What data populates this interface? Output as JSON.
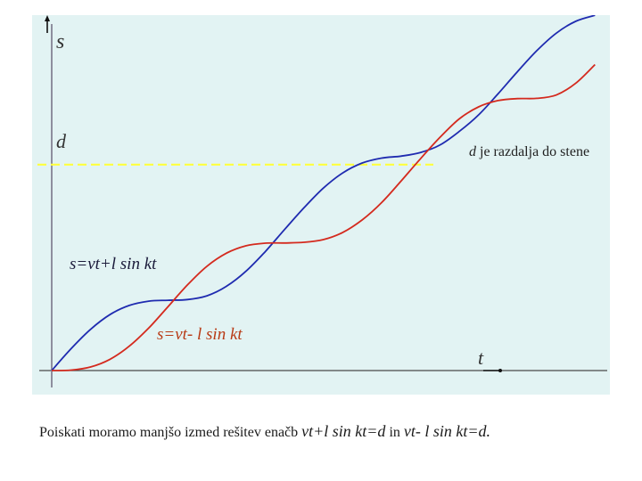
{
  "chart_data": {
    "type": "line",
    "title": "",
    "xlabel": "t",
    "ylabel": "s",
    "grid": false,
    "legend": "none",
    "xlim": [
      0,
      14.2
    ],
    "ylim": [
      0,
      15.4
    ],
    "reference_line": {
      "label": "d",
      "y": 9.2,
      "color": "#ffff3c",
      "style": "dashed",
      "annotation": "d je razdalja do stene"
    },
    "series": [
      {
        "name": "s=vt+l sin kt",
        "color": "#1f2bb0",
        "x": [
          0,
          0.5,
          1,
          1.5,
          2,
          2.5,
          3,
          3.5,
          4,
          4.5,
          5,
          5.5,
          6,
          6.5,
          7,
          7.5,
          8,
          8.5,
          9,
          9.5,
          10,
          10.5,
          11,
          11.5,
          12,
          12.5,
          13,
          13.5,
          14
        ],
        "values": [
          0,
          0.98,
          1.84,
          2.5,
          2.91,
          3.1,
          3.14,
          3.17,
          3.34,
          3.76,
          4.43,
          5.31,
          6.3,
          7.27,
          8.15,
          8.83,
          9.27,
          9.49,
          9.58,
          9.74,
          10.07,
          10.68,
          11.42,
          12.36,
          13.35,
          14.29,
          15.07,
          15.6,
          15.87
        ]
      },
      {
        "name": "s=vt-l sin kt",
        "color": "#d42a1e",
        "x": [
          0,
          0.5,
          1,
          1.5,
          2,
          2.5,
          3,
          3.5,
          4,
          4.5,
          5,
          5.5,
          6,
          6.5,
          7,
          7.5,
          8,
          8.5,
          9,
          9.5,
          10,
          10.5,
          11,
          11.5,
          12,
          12.5,
          13,
          13.5,
          14
        ],
        "values": [
          0,
          0.02,
          0.16,
          0.5,
          1.09,
          1.9,
          2.86,
          3.83,
          4.66,
          5.24,
          5.57,
          5.69,
          5.7,
          5.73,
          5.85,
          6.17,
          6.73,
          7.5,
          8.46,
          9.46,
          10.41,
          11.24,
          11.78,
          12.06,
          12.15,
          12.16,
          12.31,
          12.83,
          13.67
        ]
      }
    ],
    "annotations": [
      "s=vt+l sin kt",
      "s=vt- l sin kt"
    ]
  },
  "labels": {
    "axis_s": "s",
    "axis_t": "t",
    "d": "d",
    "d_note_var": "d",
    "d_note_text": " je razdalja do stene",
    "curve_blue_label": "s=vt+l sin kt",
    "curve_red_label": "s=vt- l sin kt"
  },
  "caption": {
    "prefix": "Poiskati moramo manjšo izmed rešitev enačb ",
    "eq1": "vt+l sin kt=d",
    "mid": " in ",
    "eq2": "vt- l sin kt=d."
  }
}
